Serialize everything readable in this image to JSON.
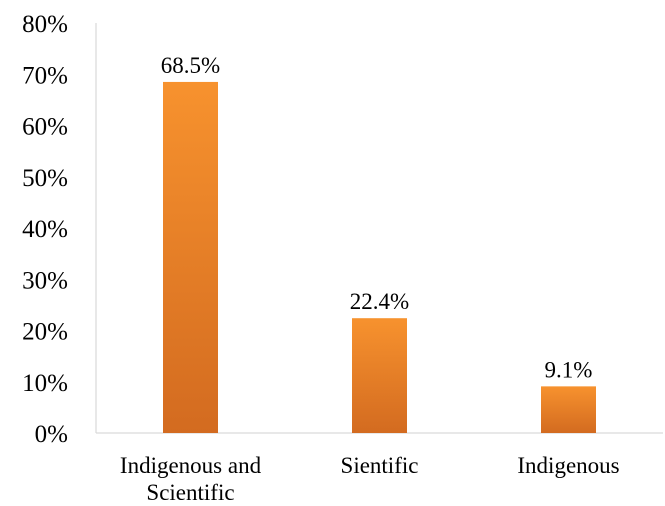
{
  "chart_data": {
    "type": "bar",
    "title": "",
    "xlabel": "",
    "ylabel": "",
    "categories": [
      "Indigenous and Scientific",
      "Sientific",
      "Indigenous"
    ],
    "category_lines": [
      [
        "Indigenous and",
        "Scientific"
      ],
      [
        "Sientific"
      ],
      [
        "Indigenous"
      ]
    ],
    "values": [
      68.5,
      22.4,
      9.1
    ],
    "data_labels": [
      "68.5%",
      "22.4%",
      "9.1%"
    ],
    "ylim": [
      0,
      80
    ],
    "y_ticks": [
      0,
      10,
      20,
      30,
      40,
      50,
      60,
      70,
      80
    ],
    "y_tick_labels": [
      "0%",
      "10%",
      "20%",
      "30%",
      "40%",
      "50%",
      "60%",
      "70%",
      "80%"
    ],
    "grid": false,
    "legend": "none",
    "bar_color_top": "#f7922e",
    "bar_color_bottom": "#d36b20"
  }
}
